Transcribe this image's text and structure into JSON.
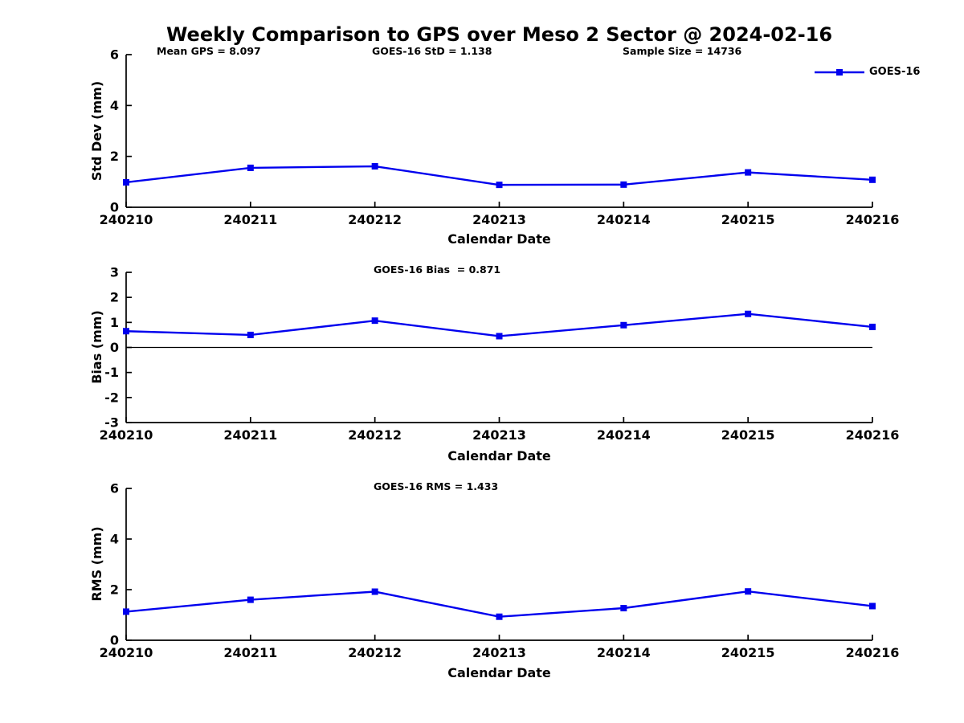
{
  "figure": {
    "title": "Weekly Comparison to GPS over Meso 2 Sector @ 2024-02-16"
  },
  "legend": {
    "label": "GOES-16",
    "color": "#0000EE"
  },
  "chart_data": [
    {
      "type": "line",
      "subplot": "std-dev",
      "annotations": [
        "Mean GPS = 8.097",
        "GOES-16 StD = 1.138",
        "Sample Size = 14736"
      ],
      "categories": [
        "240210",
        "240211",
        "240212",
        "240213",
        "240214",
        "240215",
        "240216"
      ],
      "series": [
        {
          "name": "GOES-16",
          "color": "#0000EE",
          "marker": "square",
          "values": [
            0.98,
            1.55,
            1.61,
            0.88,
            0.89,
            1.37,
            1.08
          ]
        }
      ],
      "xlabel": "Calendar Date",
      "ylabel": "Std Dev (mm)",
      "ylim": [
        0,
        6
      ],
      "yticks": [
        0,
        2,
        4,
        6
      ],
      "legend_position": "top-right",
      "grid": false
    },
    {
      "type": "line",
      "subplot": "bias",
      "annotations": [
        "GOES-16 Bias  = 0.871"
      ],
      "categories": [
        "240210",
        "240211",
        "240212",
        "240213",
        "240214",
        "240215",
        "240216"
      ],
      "series": [
        {
          "name": "GOES-16",
          "color": "#0000EE",
          "marker": "square",
          "values": [
            0.65,
            0.5,
            1.07,
            0.45,
            0.89,
            1.34,
            0.82
          ]
        }
      ],
      "xlabel": "Calendar Date",
      "ylabel": "Bias (mm)",
      "ylim": [
        -3,
        3
      ],
      "yticks": [
        -3,
        -2,
        -1,
        0,
        1,
        2,
        3
      ],
      "zero_line": true,
      "grid": false
    },
    {
      "type": "line",
      "subplot": "rms",
      "annotations": [
        "GOES-16 RMS = 1.433"
      ],
      "categories": [
        "240210",
        "240211",
        "240212",
        "240213",
        "240214",
        "240215",
        "240216"
      ],
      "series": [
        {
          "name": "GOES-16",
          "color": "#0000EE",
          "marker": "square",
          "values": [
            1.13,
            1.6,
            1.92,
            0.93,
            1.27,
            1.93,
            1.35
          ]
        }
      ],
      "xlabel": "Calendar Date",
      "ylabel": "RMS (mm)",
      "ylim": [
        0,
        6
      ],
      "yticks": [
        0,
        2,
        4,
        6
      ],
      "grid": false
    }
  ]
}
